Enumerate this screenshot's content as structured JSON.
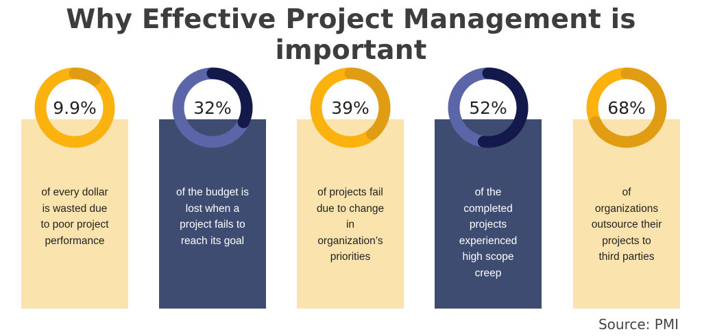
{
  "title": "Why Effective Project Management is important",
  "source": "Source: PMI",
  "chart_data": {
    "type": "pie",
    "title": "Why Effective Project Management is important",
    "categories": [
      "of every dollar is wasted due to poor project performance",
      "of the budget is lost when a project fails to reach its goal",
      "of projects fail due to change in organization’s priorities",
      "of the completed projects experienced high scope creep",
      "of organizations outsource their projects to third parties"
    ],
    "values": [
      9.9,
      32,
      39,
      52,
      68
    ],
    "unit": "%",
    "source": "Source: PMI"
  },
  "stats": [
    {
      "value_label": "9.9%",
      "value": 9.9,
      "lines": [
        "of every dollar",
        "is wasted due",
        "to poor project",
        "performance"
      ],
      "theme": "light",
      "colors": {
        "base": "#fbb20e",
        "accent": "#e09c12"
      }
    },
    {
      "value_label": "32%",
      "value": 32,
      "lines": [
        "of the budget is",
        "lost when a",
        "project fails to",
        "reach its goal"
      ],
      "theme": "dark",
      "colors": {
        "base": "#5b66a8",
        "accent": "#13194a"
      }
    },
    {
      "value_label": "39%",
      "value": 39,
      "lines": [
        "of projects fail",
        "due to change",
        "in",
        "organization’s",
        "priorities"
      ],
      "theme": "light",
      "colors": {
        "base": "#fbb20e",
        "accent": "#e09c12"
      }
    },
    {
      "value_label": "52%",
      "value": 52,
      "lines": [
        "of the",
        "completed",
        "projects",
        "experienced",
        "high scope",
        "creep"
      ],
      "theme": "dark",
      "colors": {
        "base": "#5b66a8",
        "accent": "#13194a"
      }
    },
    {
      "value_label": "68%",
      "value": 68,
      "lines": [
        "of",
        "organizations",
        "outsource their",
        "projects to",
        "third parties"
      ],
      "theme": "light",
      "colors": {
        "base": "#fbb20e",
        "accent": "#e09c12"
      }
    }
  ]
}
